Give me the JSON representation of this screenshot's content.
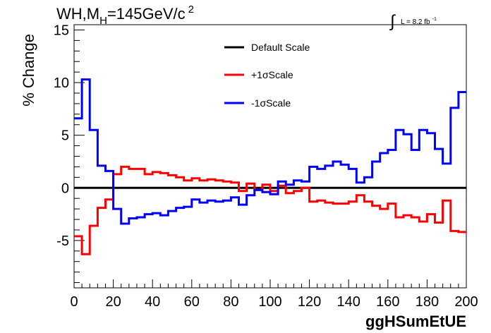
{
  "chart_data": {
    "type": "line",
    "title_main": "WH,M",
    "title_sub": "H",
    "title_rest": "=145GeV/c",
    "title_sup": "2",
    "lumi_symbol": "∫",
    "lumi_text": "L = 8.2 fb",
    "lumi_sup": "-1",
    "xlabel": "ggHSumEtUE",
    "ylabel": "% Change",
    "xlim": [
      0,
      200
    ],
    "ylim": [
      -9.5,
      15.5
    ],
    "xticks": [
      0,
      20,
      40,
      60,
      80,
      100,
      120,
      140,
      160,
      180,
      200
    ],
    "yticks": [
      -5,
      0,
      5,
      10,
      15
    ],
    "legend_position": "top-center",
    "bin_edges": [
      0,
      4,
      8,
      12,
      16,
      20,
      24,
      28,
      32,
      36,
      40,
      44,
      48,
      52,
      56,
      60,
      64,
      68,
      72,
      76,
      80,
      84,
      88,
      92,
      96,
      100,
      104,
      108,
      112,
      116,
      120,
      124,
      128,
      132,
      136,
      140,
      144,
      148,
      152,
      156,
      160,
      164,
      168,
      172,
      176,
      180,
      184,
      188,
      192,
      196,
      200
    ],
    "series": [
      {
        "name": "Default Scale",
        "color": "#000000",
        "values": [
          0,
          0,
          0,
          0,
          0,
          0,
          0,
          0,
          0,
          0,
          0,
          0,
          0,
          0,
          0,
          0,
          0,
          0,
          0,
          0,
          0,
          0,
          0,
          0,
          0,
          0,
          0,
          0,
          0,
          0,
          0,
          0,
          0,
          0,
          0,
          0,
          0,
          0,
          0,
          0,
          0,
          0,
          0,
          0,
          0,
          0,
          0,
          0,
          0,
          0
        ]
      },
      {
        "name": "+1σScale",
        "color": "#ff0000",
        "values": [
          -4.6,
          -6.3,
          -3.6,
          -1.9,
          -1.1,
          1.3,
          2.0,
          1.8,
          1.8,
          1.3,
          1.5,
          1.4,
          1.2,
          1.0,
          0.7,
          0.9,
          0.7,
          0.8,
          0.7,
          0.6,
          0.5,
          -0.3,
          0.4,
          -0.2,
          0.3,
          -0.3,
          0.2,
          -0.5,
          -0.3,
          0,
          -1.3,
          -1.2,
          -1.4,
          -1.5,
          -1.5,
          -1.3,
          -0.7,
          -1.3,
          -1.7,
          -2.0,
          -1.5,
          -2.8,
          -2.6,
          -2.8,
          -3.2,
          -2.5,
          -3.3,
          -1.2,
          -4.1,
          -4.2
        ]
      },
      {
        "name": "-1σScale",
        "color": "#0000ff",
        "values": [
          6.6,
          10.3,
          5.5,
          2.1,
          1.6,
          -2.0,
          -3.4,
          -2.9,
          -2.8,
          -2.5,
          -2.4,
          -2.6,
          -2.2,
          -1.9,
          -1.8,
          -1.1,
          -1.4,
          -1.2,
          -1.3,
          -1.2,
          -0.9,
          -1.6,
          -0.7,
          -0.2,
          -0.4,
          -0.6,
          0.6,
          0.3,
          0.7,
          0.6,
          2.0,
          1.8,
          2.1,
          2.5,
          2.2,
          1.8,
          0.5,
          1.0,
          2.5,
          3.3,
          3.6,
          5.5,
          5.1,
          3.6,
          5.5,
          5.2,
          3.7,
          2.3,
          7.6,
          9.1
        ]
      }
    ]
  }
}
